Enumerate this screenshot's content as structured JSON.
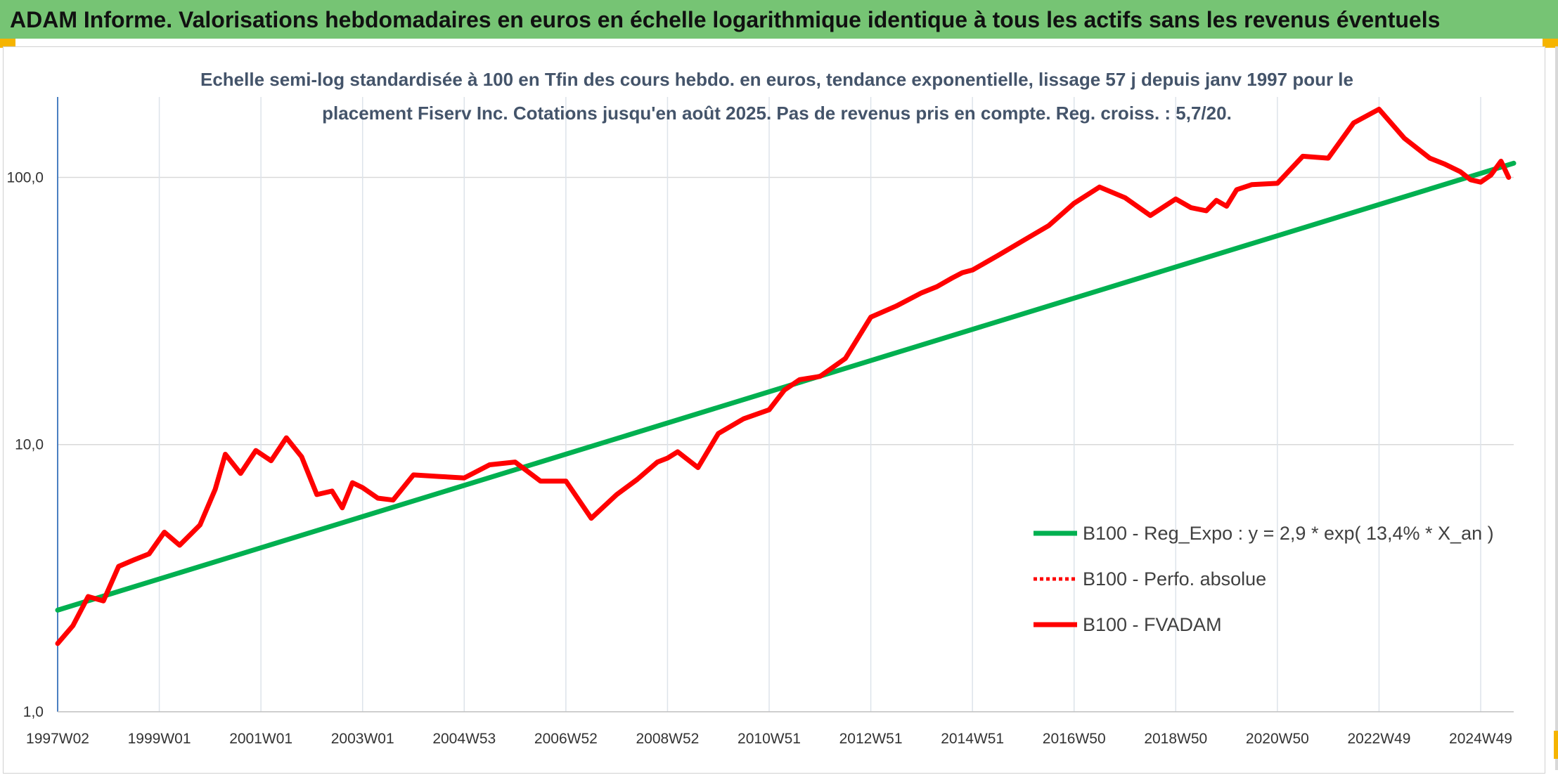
{
  "header": {
    "title": "ADAM Informe. Valorisations hebdomadaires en euros en échelle logarithmique identique à tous les actifs sans les revenus éventuels"
  },
  "colors": {
    "header_band": "#76c474",
    "accent_corner": "#f5b400",
    "series_trend": "#00b050",
    "series_price": "#ff0000",
    "title_text": "#44546a"
  },
  "chart_data": {
    "type": "line",
    "title_lines": [
      "Echelle semi-log standardisée à 100 en Tfin des cours hebdo. en euros, tendance exponentielle, lissage 57 j depuis janv 1997 pour le",
      "placement Fiserv Inc. Cotations jusqu'en août 2025. Pas de revenus pris en compte. Reg. croiss. : 5,7/20."
    ],
    "y_scale": "log",
    "ylim": [
      1,
      200
    ],
    "xlim": [
      1997.0,
      2025.65
    ],
    "y_ticks": [
      {
        "value": 1,
        "label": "1,0"
      },
      {
        "value": 10,
        "label": "10,0"
      },
      {
        "value": 100,
        "label": "100,0"
      }
    ],
    "x_ticks": [
      {
        "x": 1997.0,
        "label": "1997W02"
      },
      {
        "x": 1999.0,
        "label": "1999W01"
      },
      {
        "x": 2001.0,
        "label": "2001W01"
      },
      {
        "x": 2003.0,
        "label": "2003W01"
      },
      {
        "x": 2005.0,
        "label": "2004W53"
      },
      {
        "x": 2007.0,
        "label": "2006W52"
      },
      {
        "x": 2009.0,
        "label": "2008W52"
      },
      {
        "x": 2011.0,
        "label": "2010W51"
      },
      {
        "x": 2013.0,
        "label": "2012W51"
      },
      {
        "x": 2015.0,
        "label": "2014W51"
      },
      {
        "x": 2017.0,
        "label": "2016W50"
      },
      {
        "x": 2019.0,
        "label": "2018W50"
      },
      {
        "x": 2021.0,
        "label": "2020W50"
      },
      {
        "x": 2023.0,
        "label": "2022W49"
      },
      {
        "x": 2025.0,
        "label": "2024W49"
      }
    ],
    "grid": "vertical and horizontal",
    "legend_position": "bottom-right",
    "series": [
      {
        "name": "B100 - Reg_Expo : y = 2,9 * exp( 13,4% *  X_an )",
        "style": "solid",
        "color": "#00b050",
        "x": [
          1997.0,
          2025.65
        ],
        "y": [
          2.4,
          113
        ]
      },
      {
        "name": "B100 - Perfo. absolue",
        "style": "dotted",
        "color": "#ff0000",
        "x": [],
        "y": []
      },
      {
        "name": "B100 - FVADAM",
        "style": "solid",
        "color": "#ff0000",
        "x": [
          1997.0,
          1997.3,
          1997.6,
          1997.9,
          1998.2,
          1998.5,
          1998.8,
          1999.1,
          1999.4,
          1999.8,
          2000.1,
          2000.3,
          2000.6,
          2000.9,
          2001.2,
          2001.5,
          2001.8,
          2002.1,
          2002.4,
          2002.6,
          2002.8,
          2003.0,
          2003.3,
          2003.6,
          2004.0,
          2004.5,
          2005.0,
          2005.5,
          2006.0,
          2006.5,
          2007.0,
          2007.5,
          2008.0,
          2008.4,
          2008.8,
          2009.0,
          2009.2,
          2009.6,
          2010.0,
          2010.5,
          2011.0,
          2011.3,
          2011.6,
          2012.0,
          2012.5,
          2013.0,
          2013.5,
          2014.0,
          2014.3,
          2014.6,
          2014.8,
          2015.0,
          2015.5,
          2016.0,
          2016.5,
          2017.0,
          2017.5,
          2018.0,
          2018.5,
          2019.0,
          2019.3,
          2019.6,
          2019.8,
          2020.0,
          2020.2,
          2020.5,
          2021.0,
          2021.5,
          2022.0,
          2022.5,
          2023.0,
          2023.5,
          2024.0,
          2024.3,
          2024.6,
          2024.8,
          2025.0,
          2025.2,
          2025.4,
          2025.55
        ],
        "y": [
          1.8,
          2.1,
          2.7,
          2.6,
          3.5,
          3.7,
          3.9,
          4.7,
          4.2,
          5.0,
          6.8,
          9.2,
          7.8,
          9.5,
          8.7,
          10.6,
          9.0,
          6.5,
          6.7,
          5.8,
          7.2,
          6.9,
          6.3,
          6.2,
          7.7,
          7.6,
          7.5,
          8.4,
          8.6,
          7.3,
          7.3,
          5.3,
          6.5,
          7.4,
          8.6,
          8.9,
          9.4,
          8.2,
          11.0,
          12.5,
          13.5,
          16.0,
          17.5,
          18.0,
          21.0,
          30.0,
          33.0,
          37.0,
          39.0,
          42.0,
          44.0,
          45.0,
          51.0,
          58.0,
          66.0,
          80.0,
          92.0,
          84.0,
          72.0,
          83.0,
          77.0,
          75.0,
          82.0,
          78.0,
          90.0,
          94.0,
          95.0,
          120.0,
          118.0,
          160.0,
          180.0,
          140.0,
          118.0,
          112.0,
          105.0,
          98.0,
          96.0,
          102.0,
          115.0,
          100.0
        ]
      }
    ]
  }
}
